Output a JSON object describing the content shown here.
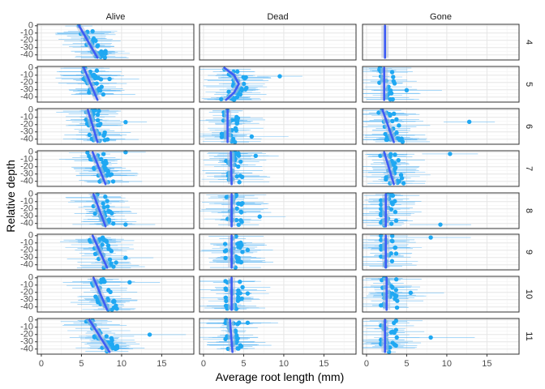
{
  "chart_data": {
    "type": "scatter",
    "subtype": "faceted-grid",
    "xlabel": "Average root length (mm)",
    "ylabel": "Relative depth",
    "xlim": [
      -0.5,
      19
    ],
    "ylim": [
      -47,
      2
    ],
    "x_ticks": [
      0,
      5,
      10,
      15
    ],
    "y_ticks": [
      0,
      -10,
      -20,
      -30,
      -40
    ],
    "x_tick_labels": [
      "0",
      "5",
      "10",
      "15"
    ],
    "y_tick_labels": [
      "0",
      "-10",
      "-20",
      "-30",
      "-40"
    ],
    "columns": [
      "Alive",
      "Dead",
      "Gone"
    ],
    "rows": [
      "4",
      "5",
      "6",
      "7",
      "8",
      "9",
      "10",
      "11"
    ],
    "grid": true,
    "point_color": "#1fa8f2",
    "error_bar_color": "#56b4f4",
    "smooth_color": "#3d5bf5",
    "smooth_band_color": "#b7bfd6",
    "panels": [
      {
        "row": "4",
        "col": "Alive",
        "center": [
          4.8,
          7.2
        ],
        "x_range": [
          4.0,
          8.0
        ],
        "n_points": 34,
        "trend": [
          [
            0,
            4.7
          ],
          [
            -44,
            7.0
          ]
        ]
      },
      {
        "row": "4",
        "col": "Dead",
        "empty": true
      },
      {
        "row": "4",
        "col": "Gone",
        "center": [
          2.3,
          2.3
        ],
        "x_range": [
          1.6,
          2.6
        ],
        "n_points": 0,
        "trend": [
          [
            0,
            2.3
          ],
          [
            -44,
            2.3
          ]
        ]
      },
      {
        "row": "5",
        "col": "Alive",
        "center": [
          5.5,
          7.0
        ],
        "x_range": [
          4.2,
          8.5
        ],
        "n_points": 34,
        "trend": [
          [
            0,
            5.3
          ],
          [
            -44,
            7.0
          ]
        ]
      },
      {
        "row": "5",
        "col": "Dead",
        "center": [
          3.0,
          3.5
        ],
        "x_range": [
          2.0,
          9.5
        ],
        "n_points": 36,
        "trend": [
          [
            0,
            2.6
          ],
          [
            -10,
            3.8
          ],
          [
            -22,
            4.4
          ],
          [
            -34,
            3.8
          ],
          [
            -44,
            2.8
          ]
        ]
      },
      {
        "row": "5",
        "col": "Gone",
        "center": [
          2.2,
          2.3
        ],
        "x_range": [
          1.6,
          5.0
        ],
        "n_points": 24,
        "trend": [
          [
            0,
            2.2
          ],
          [
            -44,
            2.2
          ]
        ]
      },
      {
        "row": "6",
        "col": "Alive",
        "center": [
          5.8,
          7.0
        ],
        "x_range": [
          3.2,
          10.5
        ],
        "n_points": 36,
        "trend": [
          [
            0,
            5.8
          ],
          [
            -44,
            7.0
          ]
        ]
      },
      {
        "row": "6",
        "col": "Dead",
        "center": [
          3.0,
          3.0
        ],
        "x_range": [
          2.0,
          6.0
        ],
        "n_points": 30,
        "trend": [
          [
            0,
            3.0
          ],
          [
            -44,
            3.0
          ]
        ]
      },
      {
        "row": "6",
        "col": "Gone",
        "center": [
          2.0,
          3.3
        ],
        "x_range": [
          1.4,
          12.8
        ],
        "n_points": 32,
        "trend": [
          [
            0,
            2.0
          ],
          [
            -44,
            3.4
          ]
        ]
      },
      {
        "row": "7",
        "col": "Alive",
        "center": [
          6.5,
          8.0
        ],
        "x_range": [
          4.0,
          10.5
        ],
        "n_points": 36,
        "trend": [
          [
            0,
            6.4
          ],
          [
            -44,
            8.0
          ]
        ]
      },
      {
        "row": "7",
        "col": "Dead",
        "center": [
          3.4,
          3.5
        ],
        "x_range": [
          2.4,
          6.5
        ],
        "n_points": 30,
        "trend": [
          [
            0,
            3.4
          ],
          [
            -44,
            3.5
          ]
        ]
      },
      {
        "row": "7",
        "col": "Gone",
        "center": [
          2.3,
          3.3
        ],
        "x_range": [
          1.6,
          10.4
        ],
        "n_points": 32,
        "trend": [
          [
            0,
            2.2
          ],
          [
            -44,
            3.4
          ]
        ]
      },
      {
        "row": "8",
        "col": "Alive",
        "center": [
          6.6,
          8.0
        ],
        "x_range": [
          4.0,
          10.5
        ],
        "n_points": 36,
        "trend": [
          [
            0,
            6.5
          ],
          [
            -44,
            8.0
          ]
        ]
      },
      {
        "row": "8",
        "col": "Dead",
        "center": [
          3.5,
          3.5
        ],
        "x_range": [
          2.2,
          7.0
        ],
        "n_points": 30,
        "trend": [
          [
            0,
            3.5
          ],
          [
            -44,
            3.5
          ]
        ]
      },
      {
        "row": "8",
        "col": "Gone",
        "center": [
          2.3,
          2.4
        ],
        "x_range": [
          1.8,
          9.2
        ],
        "n_points": 30,
        "trend": [
          [
            0,
            2.4
          ],
          [
            -44,
            2.4
          ]
        ]
      },
      {
        "row": "9",
        "col": "Alive",
        "center": [
          6.5,
          8.2
        ],
        "x_range": [
          4.0,
          10.5
        ],
        "n_points": 36,
        "trend": [
          [
            0,
            6.4
          ],
          [
            -44,
            8.2
          ]
        ]
      },
      {
        "row": "9",
        "col": "Dead",
        "center": [
          3.4,
          3.5
        ],
        "x_range": [
          2.5,
          5.5
        ],
        "n_points": 30,
        "trend": [
          [
            0,
            3.5
          ],
          [
            -44,
            3.5
          ]
        ]
      },
      {
        "row": "9",
        "col": "Gone",
        "center": [
          2.3,
          2.4
        ],
        "x_range": [
          1.8,
          8.0
        ],
        "n_points": 28,
        "trend": [
          [
            0,
            2.4
          ],
          [
            -44,
            2.4
          ]
        ]
      },
      {
        "row": "10",
        "col": "Alive",
        "center": [
          6.5,
          8.2
        ],
        "x_range": [
          4.5,
          11.0
        ],
        "n_points": 36,
        "trend": [
          [
            0,
            6.5
          ],
          [
            -44,
            8.2
          ]
        ]
      },
      {
        "row": "10",
        "col": "Dead",
        "center": [
          3.5,
          3.5
        ],
        "x_range": [
          2.5,
          5.5
        ],
        "n_points": 30,
        "trend": [
          [
            0,
            3.5
          ],
          [
            -44,
            3.5
          ]
        ]
      },
      {
        "row": "10",
        "col": "Gone",
        "center": [
          2.3,
          2.5
        ],
        "x_range": [
          1.8,
          5.5
        ],
        "n_points": 28,
        "trend": [
          [
            0,
            2.5
          ],
          [
            -44,
            2.5
          ]
        ]
      },
      {
        "row": "11",
        "col": "Alive",
        "center": [
          6.0,
          8.5
        ],
        "x_range": [
          4.0,
          13.5
        ],
        "n_points": 36,
        "trend": [
          [
            0,
            6.0
          ],
          [
            -44,
            8.5
          ]
        ]
      },
      {
        "row": "11",
        "col": "Dead",
        "center": [
          3.3,
          3.6
        ],
        "x_range": [
          2.5,
          5.5
        ],
        "n_points": 30,
        "trend": [
          [
            0,
            3.3
          ],
          [
            -44,
            3.6
          ]
        ]
      },
      {
        "row": "11",
        "col": "Gone",
        "center": [
          2.3,
          2.4
        ],
        "x_range": [
          1.8,
          8.0
        ],
        "n_points": 28,
        "trend": [
          [
            0,
            2.3
          ],
          [
            -44,
            2.3
          ]
        ]
      }
    ]
  }
}
